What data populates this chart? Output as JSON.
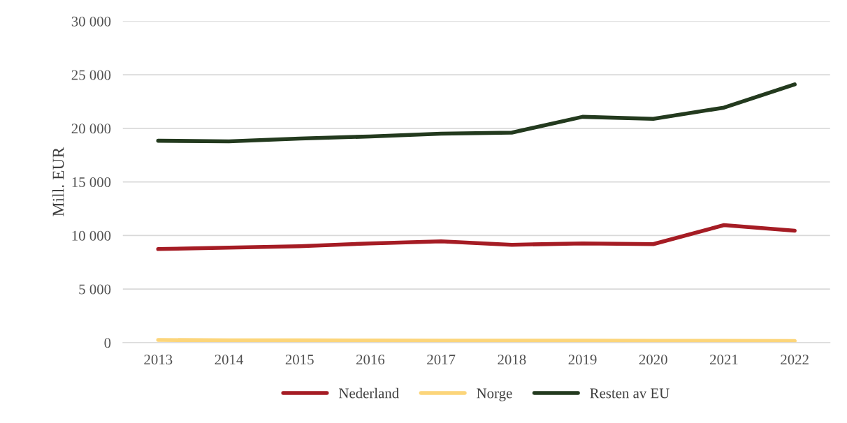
{
  "chart_data": {
    "type": "line",
    "ylabel": "Mill. EUR",
    "categories": [
      "2013",
      "2014",
      "2015",
      "2016",
      "2017",
      "2018",
      "2019",
      "2020",
      "2021",
      "2022"
    ],
    "series": [
      {
        "name": "Nederland",
        "color": "#a51c24",
        "values": [
          8730,
          8860,
          9000,
          9260,
          9450,
          9130,
          9260,
          9190,
          10970,
          10440
        ]
      },
      {
        "name": "Norge",
        "color": "#fcd57a",
        "values": [
          250,
          220,
          210,
          200,
          190,
          180,
          180,
          170,
          170,
          160
        ]
      },
      {
        "name": "Resten av EU",
        "color": "#233a1e",
        "values": [
          18840,
          18780,
          19040,
          19240,
          19500,
          19600,
          21070,
          20880,
          21930,
          24100
        ]
      }
    ],
    "ylim": [
      0,
      30000
    ],
    "yticks": [
      {
        "value": 0,
        "label": "0"
      },
      {
        "value": 5000,
        "label": "5 000"
      },
      {
        "value": 10000,
        "label": "10 000"
      },
      {
        "value": 15000,
        "label": "15 000"
      },
      {
        "value": 20000,
        "label": "20 000"
      },
      {
        "value": 25000,
        "label": "25 000"
      },
      {
        "value": 30000,
        "label": "30 000"
      }
    ],
    "grid": "y",
    "legend": "bottom",
    "marker": "none",
    "line_style": "solid"
  }
}
